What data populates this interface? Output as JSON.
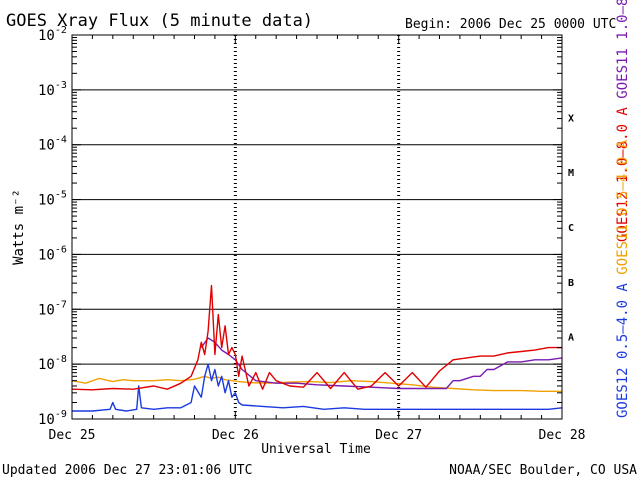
{
  "header": {
    "title": "GOES Xray Flux (5 minute data)",
    "begin": "Begin:  2006 Dec 25 0000 UTC"
  },
  "footer": {
    "updated": "Updated 2006 Dec 27 23:01:06 UTC",
    "credit": "NOAA/SEC Boulder, CO USA"
  },
  "chart_data": {
    "type": "line",
    "title": "GOES Xray Flux (5 minute data)",
    "xlabel": "Universal Time",
    "ylabel": "Watts m⁻²",
    "x_unit": "hours since 2006 Dec 25 0000 UTC",
    "xlim": [
      0,
      72
    ],
    "x_ticks": [
      {
        "x": 0,
        "label": "Dec 25"
      },
      {
        "x": 24,
        "label": "Dec 26"
      },
      {
        "x": 48,
        "label": "Dec 27"
      },
      {
        "x": 72,
        "label": "Dec 28"
      }
    ],
    "y_scale": "log",
    "ylim": [
      1e-09,
      0.01
    ],
    "y_ticks": [
      {
        "exp": -9,
        "label": "-9"
      },
      {
        "exp": -8,
        "label": "-8"
      },
      {
        "exp": -7,
        "label": "-7"
      },
      {
        "exp": -6,
        "label": "-6"
      },
      {
        "exp": -5,
        "label": "-5"
      },
      {
        "exp": -4,
        "label": "-4"
      },
      {
        "exp": -3,
        "label": "-3"
      },
      {
        "exp": -2,
        "label": "-2"
      }
    ],
    "flare_classes": [
      {
        "label": "A",
        "exp": -8
      },
      {
        "label": "B",
        "exp": -7
      },
      {
        "label": "C",
        "exp": -6
      },
      {
        "label": "M",
        "exp": -5
      },
      {
        "label": "X",
        "exp": -4
      }
    ],
    "grid": true,
    "legend_placement": "right side, rotated",
    "legend_right": [
      {
        "name": "GOES12 1.0–8.0 A",
        "color": "#e00000"
      },
      {
        "name": "GOES11 1.0–8.0 A",
        "color": "#7a1ab0"
      }
    ],
    "legend_left": [
      {
        "name": "GOES12 0.5–4.0 A",
        "color": "#1a3ae0"
      },
      {
        "name": "GOES11 0.5–4.0 A",
        "color": "#f0a000"
      }
    ],
    "series": [
      {
        "name": "GOES11 0.5–4.0 A",
        "color": "#f0a000",
        "x": [
          0,
          2,
          4,
          6,
          7.5,
          9,
          12,
          14,
          16,
          18,
          19.5,
          20.5,
          21.5,
          22.5,
          23.5,
          24.5,
          26,
          29,
          32,
          35,
          38,
          41,
          44,
          47,
          50,
          53,
          56,
          59,
          62,
          66,
          69,
          72
        ],
        "y": [
          5e-09,
          4.5e-09,
          5.5e-09,
          4.8e-09,
          5.2e-09,
          5e-09,
          5e-09,
          5.2e-09,
          5e-09,
          5.3e-09,
          6e-09,
          5.5e-09,
          5.8e-09,
          5.2e-09,
          5e-09,
          4.8e-09,
          4.6e-09,
          4.5e-09,
          4.7e-09,
          4.8e-09,
          4.6e-09,
          5e-09,
          4.8e-09,
          4.5e-09,
          4.2e-09,
          3.8e-09,
          3.6e-09,
          3.4e-09,
          3.3e-09,
          3.3e-09,
          3.2e-09,
          3.2e-09
        ]
      },
      {
        "name": "GOES12 0.5–4.0 A",
        "color": "#1a3ae0",
        "x": [
          0,
          3,
          5.6,
          6,
          6.4,
          8,
          9.5,
          9.8,
          10.2,
          12,
          14,
          16,
          17.5,
          18,
          19,
          19.5,
          20,
          20.5,
          21,
          21.5,
          22,
          22.5,
          23,
          23.5,
          24,
          24.5,
          25,
          28,
          31,
          34,
          37,
          40,
          43,
          46,
          49,
          52,
          55,
          58,
          61,
          64,
          67,
          70,
          72
        ],
        "y": [
          1.4e-09,
          1.4e-09,
          1.5e-09,
          2e-09,
          1.5e-09,
          1.4e-09,
          1.5e-09,
          4e-09,
          1.6e-09,
          1.5e-09,
          1.6e-09,
          1.6e-09,
          2e-09,
          4e-09,
          2.5e-09,
          6e-09,
          1e-08,
          5e-09,
          8e-09,
          4e-09,
          6e-09,
          3e-09,
          5e-09,
          2.5e-09,
          3e-09,
          2e-09,
          1.8e-09,
          1.7e-09,
          1.6e-09,
          1.7e-09,
          1.5e-09,
          1.6e-09,
          1.5e-09,
          1.5e-09,
          1.5e-09,
          1.5e-09,
          1.5e-09,
          1.5e-09,
          1.5e-09,
          1.5e-09,
          1.5e-09,
          1.5e-09,
          1.6e-09
        ]
      },
      {
        "name": "GOES11 1.0–8.0 A",
        "color": "#7a1ab0",
        "x": [
          19,
          20,
          21,
          22,
          23,
          24,
          25,
          27,
          30,
          33,
          36,
          40,
          44,
          48,
          52,
          55,
          56,
          57,
          59,
          60,
          61,
          62,
          64,
          66,
          68,
          70,
          72
        ],
        "y": [
          2e-08,
          3e-08,
          2.5e-08,
          1.8e-08,
          1.5e-08,
          1.2e-08,
          8e-09,
          5e-09,
          4.5e-09,
          4.5e-09,
          4.2e-09,
          4e-09,
          3.8e-09,
          3.6e-09,
          3.6e-09,
          3.6e-09,
          5e-09,
          5e-09,
          6e-09,
          6e-09,
          8e-09,
          8e-09,
          1.1e-08,
          1.1e-08,
          1.2e-08,
          1.2e-08,
          1.3e-08
        ]
      },
      {
        "name": "GOES12 1.0–8.0 A",
        "color": "#e00000",
        "x": [
          0,
          3,
          6,
          9,
          12,
          14,
          16,
          17.5,
          18.5,
          19,
          19.5,
          20,
          20.5,
          21,
          21.5,
          22,
          22.5,
          23,
          23.5,
          24,
          24.5,
          25,
          26,
          27,
          28,
          29,
          30,
          32,
          34,
          36,
          38,
          40,
          42,
          44,
          46,
          48,
          50,
          52,
          54,
          56,
          58,
          60,
          62,
          64,
          66,
          68,
          70,
          72
        ],
        "y": [
          3.5e-09,
          3.4e-09,
          3.6e-09,
          3.5e-09,
          4e-09,
          3.5e-09,
          4.5e-09,
          6e-09,
          1.2e-08,
          2.5e-08,
          1.5e-08,
          4e-08,
          2.7e-07,
          1.5e-08,
          8e-08,
          2e-08,
          5e-08,
          1.5e-08,
          2e-08,
          1.5e-08,
          6e-09,
          1.4e-08,
          4e-09,
          7e-09,
          3.5e-09,
          7e-09,
          5e-09,
          4e-09,
          3.8e-09,
          7e-09,
          3.6e-09,
          7e-09,
          3.5e-09,
          4e-09,
          7e-09,
          4e-09,
          7e-09,
          3.8e-09,
          7.5e-09,
          1.2e-08,
          1.3e-08,
          1.4e-08,
          1.4e-08,
          1.6e-08,
          1.7e-08,
          1.8e-08,
          2e-08,
          2e-08
        ]
      }
    ]
  }
}
